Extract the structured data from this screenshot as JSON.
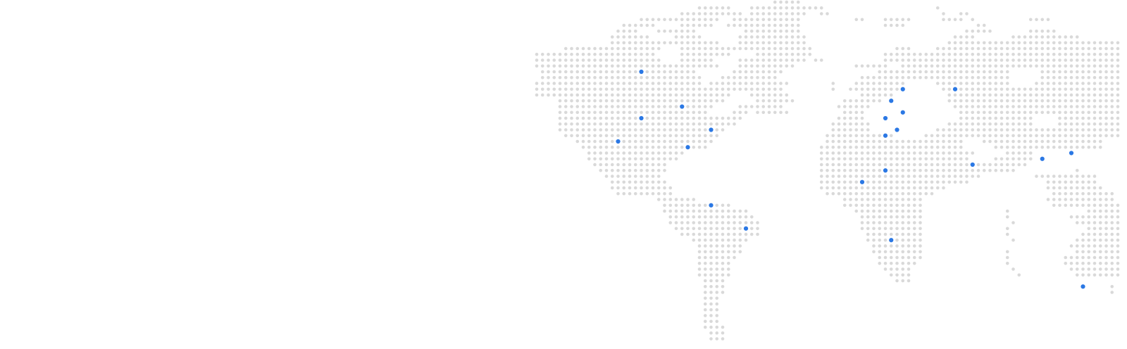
{
  "map": {
    "style": "dotted-world-map",
    "dot_color": "#d9d9d9",
    "marker_color": "#2b78e4",
    "marker_count": 24
  }
}
